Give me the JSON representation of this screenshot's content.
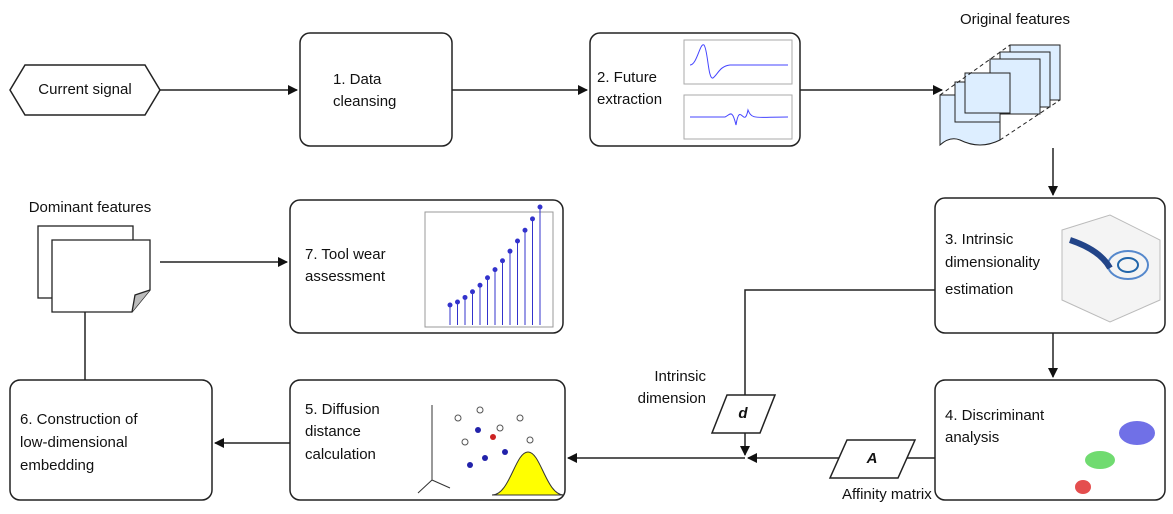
{
  "input": {
    "label": "Current signal"
  },
  "steps": [
    {
      "lines": [
        "1. Data",
        "cleansing"
      ]
    },
    {
      "lines": [
        "2. Future",
        "extraction"
      ]
    },
    {
      "lines": [
        "3. Intrinsic",
        "dimensionality",
        "estimation"
      ]
    },
    {
      "lines": [
        "4. Discriminant",
        "analysis"
      ]
    },
    {
      "lines": [
        "5. Diffusion",
        "distance",
        "calculation"
      ]
    },
    {
      "lines": [
        "6. Construction of",
        "low-dimensional",
        "embedding"
      ]
    },
    {
      "lines": [
        "7. Tool wear",
        "assessment"
      ]
    }
  ],
  "data_items": {
    "original_features": "Original features",
    "dominant_features": "Dominant features",
    "intrinsic_dimension": {
      "symbol": "d",
      "lines": [
        "Intrinsic",
        "dimension"
      ]
    },
    "affinity_matrix": {
      "symbol": "A",
      "label": "Affinity matrix"
    }
  }
}
